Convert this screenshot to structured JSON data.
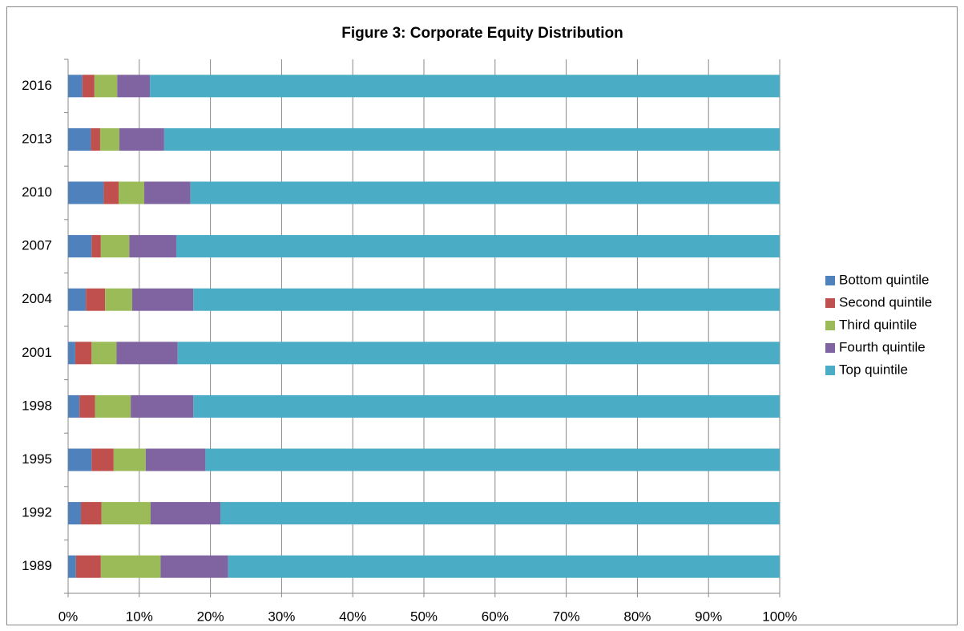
{
  "chart_data": {
    "type": "stacked_barh",
    "title": "Figure 3: Corporate Equity Distribution",
    "categories": [
      "1989",
      "1992",
      "1995",
      "1998",
      "2001",
      "2004",
      "2007",
      "2010",
      "2013",
      "2016"
    ],
    "series": [
      {
        "name": "Bottom quintile",
        "color": "#4f81bd",
        "values": [
          1.1,
          1.8,
          3.3,
          1.6,
          1.0,
          2.5,
          3.3,
          5.0,
          3.2,
          2.0
        ]
      },
      {
        "name": "Second quintile",
        "color": "#c0504d",
        "values": [
          3.5,
          2.9,
          3.1,
          2.2,
          2.3,
          2.7,
          1.3,
          2.1,
          1.3,
          1.7
        ]
      },
      {
        "name": "Third quintile",
        "color": "#9bbb59",
        "values": [
          8.4,
          6.9,
          4.5,
          5.0,
          3.5,
          3.8,
          4.0,
          3.6,
          2.7,
          3.2
        ]
      },
      {
        "name": "Fourth quintile",
        "color": "#8064a2",
        "values": [
          9.5,
          9.8,
          8.4,
          8.8,
          8.6,
          8.6,
          6.6,
          6.5,
          6.3,
          4.6
        ]
      },
      {
        "name": "Top quintile",
        "color": "#4bacc6",
        "values": [
          77.5,
          78.6,
          80.7,
          82.4,
          84.6,
          82.4,
          84.8,
          82.8,
          86.5,
          88.5
        ]
      }
    ],
    "xlim": [
      0,
      100
    ],
    "xticks": [
      {
        "value": 0,
        "label": "0%"
      },
      {
        "value": 10,
        "label": "10%"
      },
      {
        "value": 20,
        "label": "20%"
      },
      {
        "value": 30,
        "label": "30%"
      },
      {
        "value": 40,
        "label": "40%"
      },
      {
        "value": 50,
        "label": "50%"
      },
      {
        "value": 60,
        "label": "60%"
      },
      {
        "value": 70,
        "label": "70%"
      },
      {
        "value": 80,
        "label": "80%"
      },
      {
        "value": 90,
        "label": "90%"
      },
      {
        "value": 100,
        "label": "100%"
      }
    ],
    "grid": true,
    "legend": "right"
  }
}
